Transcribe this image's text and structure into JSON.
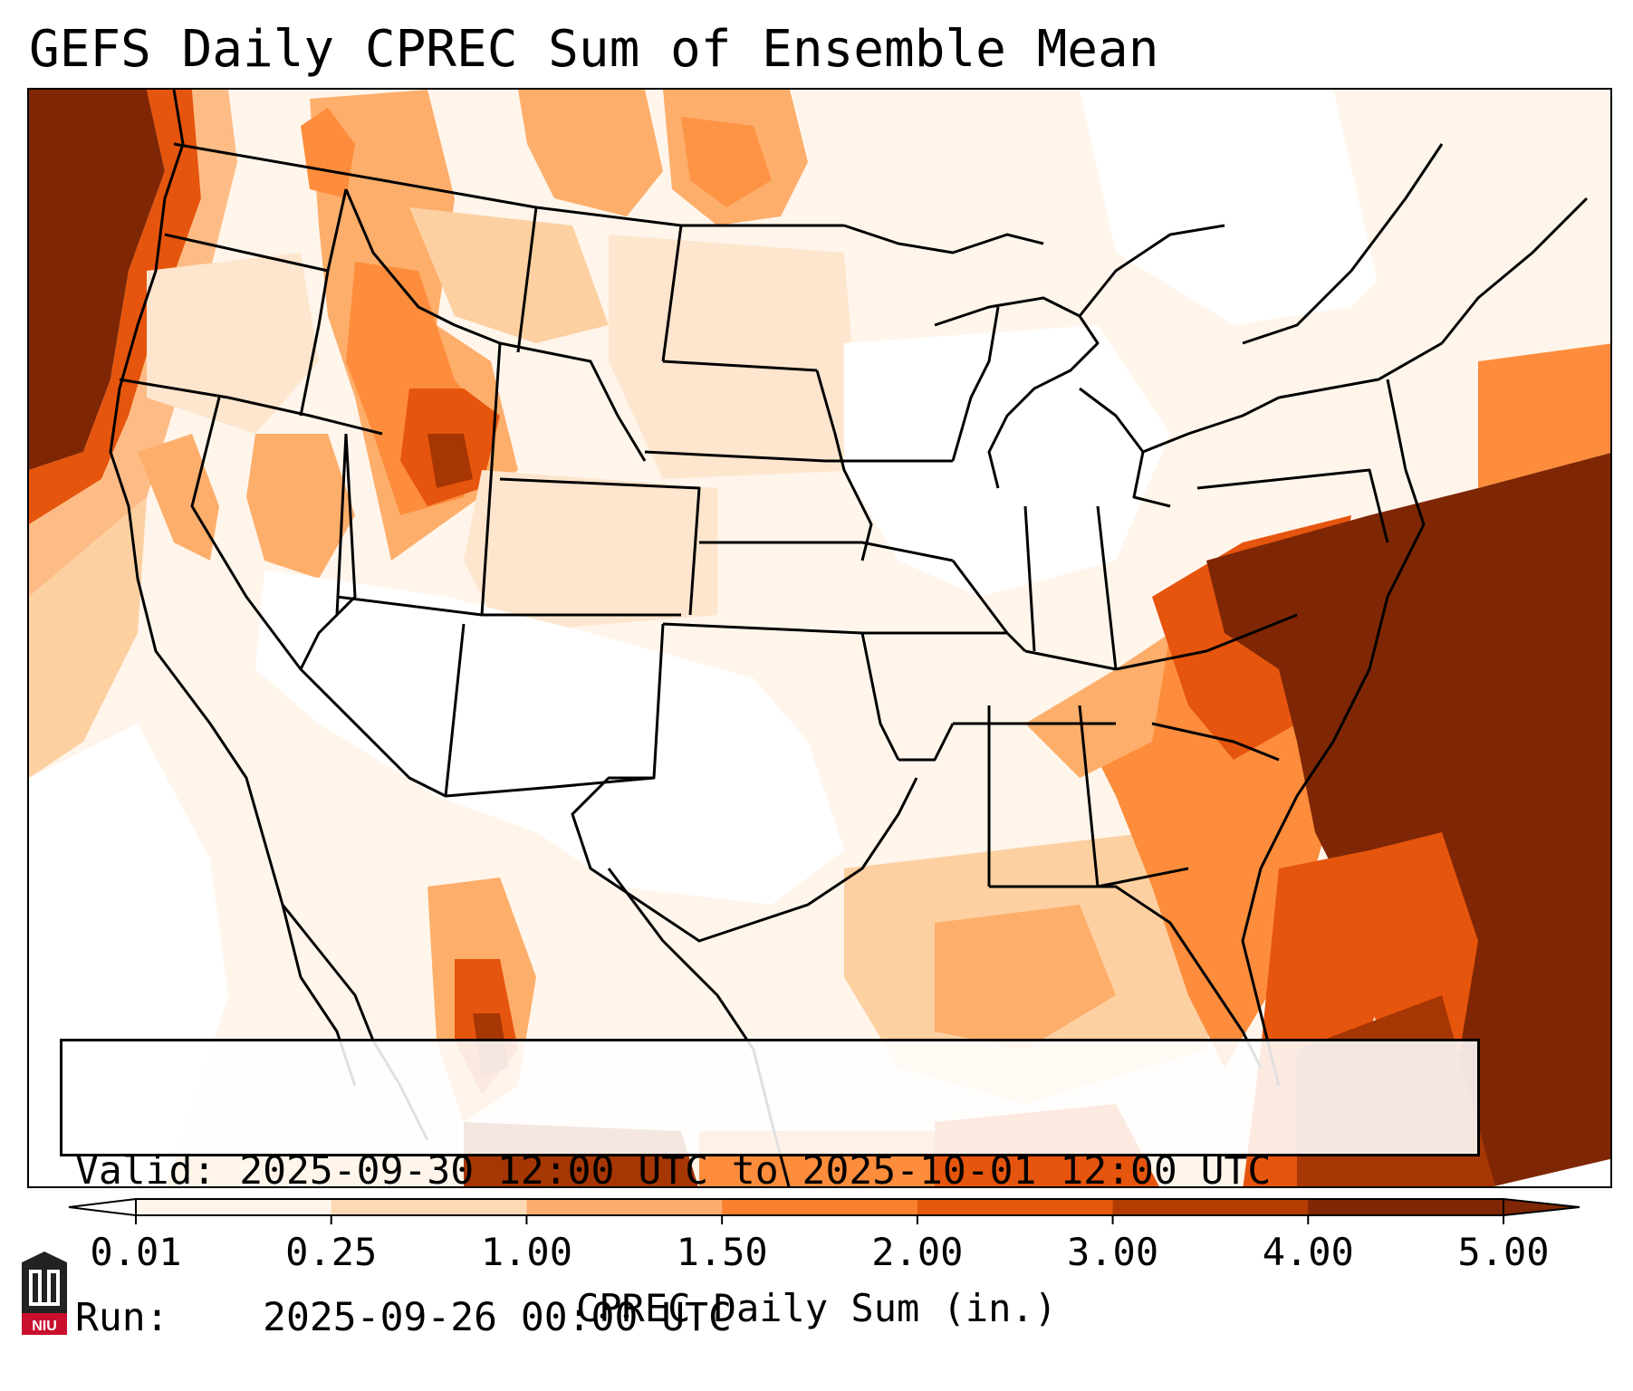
{
  "title": "GEFS Daily CPREC Sum of Ensemble Mean",
  "info": {
    "valid_label": "Valid:",
    "valid_value": "2025-09-30 12:00 UTC to 2025-10-01 12:00 UTC",
    "run_label": "Run:",
    "run_value": "2025-09-26 00:00 UTC"
  },
  "colorbar": {
    "label": "CPREC Daily Sum (in.)",
    "ticks": [
      "0.01",
      "0.25",
      "1.00",
      "1.50",
      "2.00",
      "3.00",
      "4.00",
      "5.00"
    ],
    "colors": [
      "#fff5eb",
      "#fdd9b4",
      "#fdac70",
      "#f9802d",
      "#e45a0d",
      "#b33c03",
      "#7f2704"
    ]
  },
  "logo": {
    "text": "NIU",
    "color": "#c8102e"
  },
  "map": {
    "domain": "Continental United States",
    "background_levels": [
      "#ffffff",
      "#fff5eb",
      "#fee6ce",
      "#fdd0a2",
      "#fdae6b",
      "#fd8d3c",
      "#e6550d",
      "#a63603",
      "#7f2704"
    ]
  }
}
